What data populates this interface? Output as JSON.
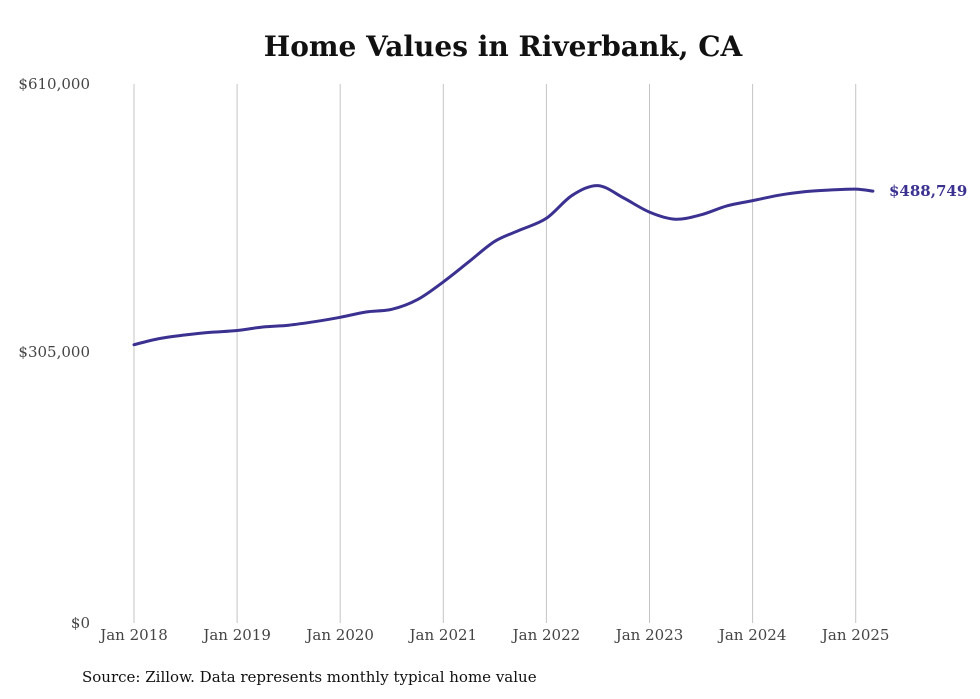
{
  "chart_data": {
    "type": "line",
    "title": "Home Values in Riverbank, CA",
    "xlabel": "",
    "ylabel": "",
    "ylim": [
      0,
      610000
    ],
    "yticks": [
      "$0",
      "$305,000",
      "$610,000"
    ],
    "xticks": [
      "Jan 2018",
      "Jan 2019",
      "Jan 2020",
      "Jan 2021",
      "Jan 2022",
      "Jan 2023",
      "Jan 2024",
      "Jan 2025"
    ],
    "grid": "vertical",
    "line_color": "#3b3190",
    "end_label": "$488,749",
    "series": [
      {
        "x": [
          "2018-01",
          "2018-04",
          "2018-07",
          "2018-10",
          "2019-01",
          "2019-04",
          "2019-07",
          "2019-10",
          "2020-01",
          "2020-04",
          "2020-07",
          "2020-10",
          "2021-01",
          "2021-04",
          "2021-07",
          "2021-10",
          "2022-01",
          "2022-04",
          "2022-07",
          "2022-10",
          "2023-01",
          "2023-04",
          "2023-07",
          "2023-10",
          "2024-01",
          "2024-04",
          "2024-07",
          "2024-10",
          "2025-01",
          "2025-03"
        ],
        "values": [
          315000,
          322000,
          326000,
          329000,
          331000,
          335000,
          337000,
          341000,
          346000,
          352000,
          355000,
          366000,
          386000,
          409000,
          432000,
          445000,
          458000,
          484000,
          495000,
          481000,
          465000,
          457000,
          462000,
          472000,
          478000,
          484000,
          488000,
          490000,
          491000,
          488749
        ]
      }
    ]
  },
  "source": "Source: Zillow. Data represents monthly typical home value"
}
